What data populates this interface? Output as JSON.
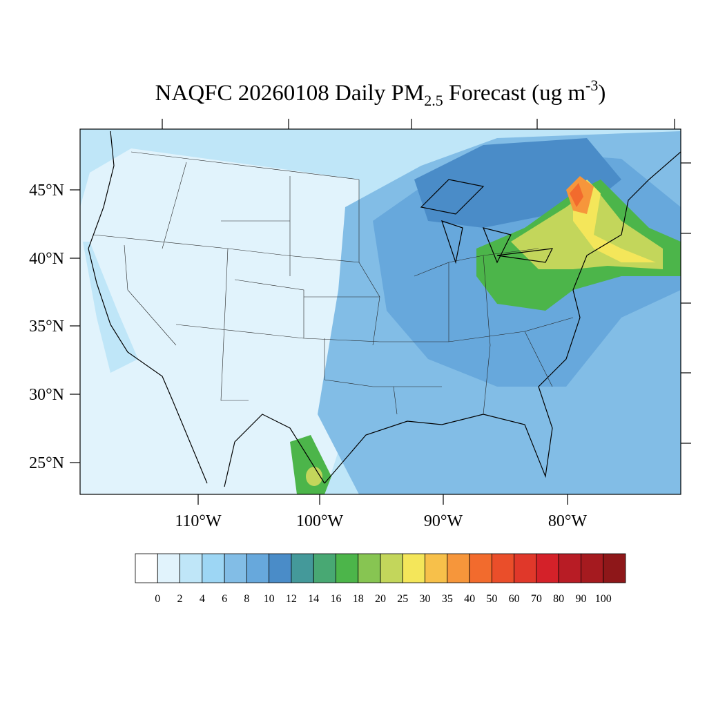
{
  "title": {
    "main": "NAQFC 20260108 Daily PM",
    "sub": "2.5",
    "rest": " Forecast (ug m",
    "sup": "-3",
    "end": ")"
  },
  "lat_labels": [
    "45°N",
    "40°N",
    "35°N",
    "30°N",
    "25°N"
  ],
  "lon_labels": [
    "110°W",
    "100°W",
    "90°W",
    "80°W"
  ],
  "colorbar": {
    "levels": [
      0,
      2,
      4,
      6,
      8,
      10,
      12,
      14,
      16,
      18,
      20,
      25,
      30,
      35,
      40,
      50,
      60,
      70,
      80,
      90,
      100
    ],
    "colors": [
      "#ffffff",
      "#e1f3fc",
      "#bfe6f8",
      "#9dd6f4",
      "#82bde6",
      "#67a8dc",
      "#4a8cc8",
      "#44999a",
      "#48a873",
      "#4cb54a",
      "#87c552",
      "#c3d65b",
      "#f4e65a",
      "#f7c04a",
      "#f6963b",
      "#f26b2d",
      "#ea4e2a",
      "#e0382a",
      "#d42129",
      "#b81c25",
      "#a51a1f",
      "#8e1719"
    ]
  }
}
